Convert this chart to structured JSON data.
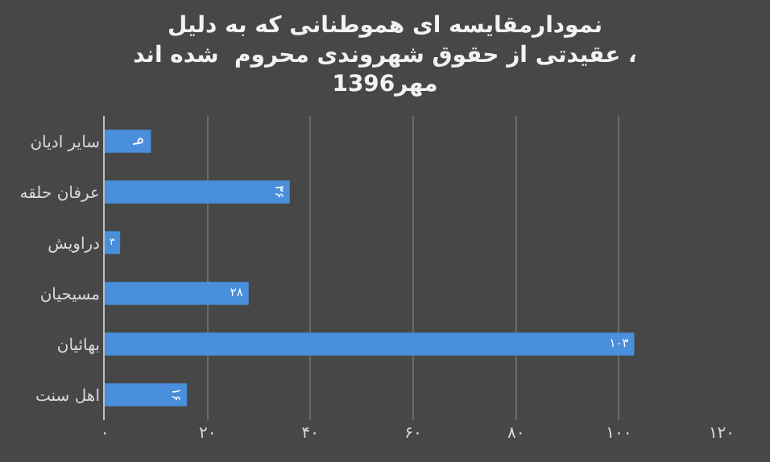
{
  "chart_data": {
    "type": "bar",
    "orientation": "horizontal",
    "title": "نمودارمقایسه ای هموطنانی که به دلیل\nعقیدتی از حقوق شهروندی محروم  شده اند ،\nمهر1396",
    "categories": [
      "سایر ادیان",
      "عرفان حلقه",
      "دراویش",
      "مسیحیان",
      "بهائیان",
      "اهل سنت"
    ],
    "values": [
      9,
      36,
      3,
      28,
      103,
      16
    ],
    "value_labels": [
      "۹",
      "۳۶",
      "۳",
      "۲۸",
      "۱۰۳",
      "۱۶"
    ],
    "color": "#4a8fdb",
    "xlim": [
      0,
      120
    ],
    "xticks": [
      {
        "value": 0,
        "label": "۰"
      },
      {
        "value": 20,
        "label": "۲۰"
      },
      {
        "value": 40,
        "label": "۴۰"
      },
      {
        "value": 60,
        "label": "۶۰"
      },
      {
        "value": 80,
        "label": "۸۰"
      },
      {
        "value": 100,
        "label": "۱۰۰"
      },
      {
        "value": 120,
        "label": "۱۲۰"
      }
    ],
    "grid": "x"
  }
}
